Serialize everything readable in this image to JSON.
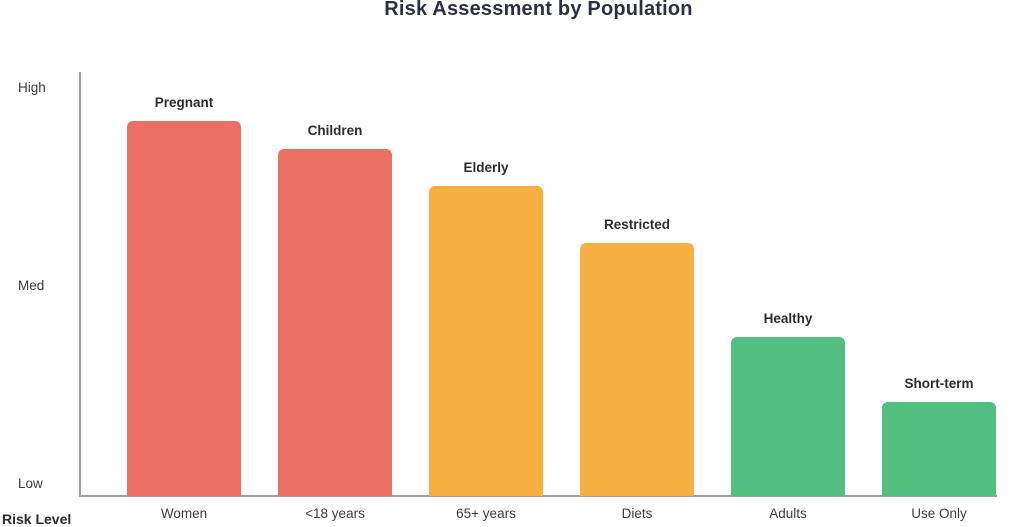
{
  "chart_data": {
    "type": "bar",
    "title": "Risk Assessment by Population",
    "categories": [
      "Women",
      "<18 years",
      "65+ years",
      "Diets",
      "Adults",
      "Use Only"
    ],
    "bar_labels": [
      "Pregnant",
      "Children",
      "Elderly",
      "Restricted",
      "Healthy",
      "Short-term"
    ],
    "values": [
      92,
      85,
      76,
      62,
      39,
      23
    ],
    "value_note": "risk level as percent of axis, Low=0 to High=100, estimated from bar heights",
    "bar_colors": [
      "#EC7063",
      "#EC7063",
      "#F5B041",
      "#F5B041",
      "#52BE80",
      "#52BE80"
    ],
    "ylabel": "Risk Level",
    "ytick_labels": [
      "High",
      "Med",
      "Low"
    ],
    "ylim": [
      0,
      100
    ],
    "grid": false,
    "legend": false
  },
  "colors": {
    "salmon_red": "#EC7063",
    "orange": "#F5B041",
    "green": "#52BE80",
    "axis_line": "#9aa0ae",
    "title_text": "#2b3142",
    "label_text": "#2d2d2d"
  }
}
